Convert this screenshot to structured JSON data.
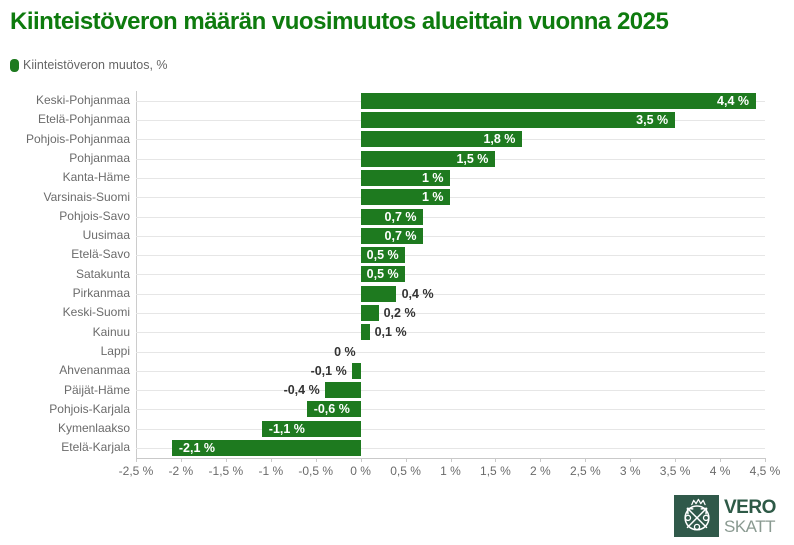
{
  "header": {
    "title": "Kiinteistöveron määrän vuosimuutos alueittain vuonna 2025",
    "title_color": "#0e7b0e"
  },
  "legend": {
    "label": "Kiinteistöveron muutos, %",
    "marker_color": "#1e7a1f"
  },
  "chart_data": {
    "type": "bar",
    "orientation": "horizontal",
    "title": "Kiinteistöveron määrän vuosimuutos alueittain vuonna 2025",
    "series_name": "Kiinteistöveron muutos, %",
    "bar_color": "#1e7a1f",
    "categories": [
      "Keski-Pohjanmaa",
      "Etelä-Pohjanmaa",
      "Pohjois-Pohjanmaa",
      "Pohjanmaa",
      "Kanta-Häme",
      "Varsinais-Suomi",
      "Pohjois-Savo",
      "Uusimaa",
      "Etelä-Savo",
      "Satakunta",
      "Pirkanmaa",
      "Keski-Suomi",
      "Kainuu",
      "Lappi",
      "Ahvenanmaa",
      "Päijät-Häme",
      "Pohjois-Karjala",
      "Kymenlaakso",
      "Etelä-Karjala"
    ],
    "values": [
      4.4,
      3.5,
      1.8,
      1.5,
      1,
      1,
      0.7,
      0.7,
      0.5,
      0.5,
      0.4,
      0.2,
      0.1,
      0,
      -0.1,
      -0.4,
      -0.6,
      -1.1,
      -2.1
    ],
    "value_labels": [
      "4,4 %",
      "3,5 %",
      "1,8 %",
      "1,5 %",
      "1 %",
      "1 %",
      "0,7 %",
      "0,7 %",
      "0,5 %",
      "0,5 %",
      "0,4 %",
      "0,2 %",
      "0,1 %",
      "0 %",
      "-0,1 %",
      "-0,4 %",
      "-0,6 %",
      "-1,1 %",
      "-2,1 %"
    ],
    "xlim": [
      -2.5,
      4.5
    ],
    "x_ticks": [
      -2.5,
      -2,
      -1.5,
      -1,
      -0.5,
      0,
      0.5,
      1,
      1.5,
      2,
      2.5,
      3,
      3.5,
      4,
      4.5
    ],
    "x_tick_labels": [
      "-2,5 %",
      "-2 %",
      "-1,5 %",
      "-1 %",
      "-0,5 %",
      "0 %",
      "0,5 %",
      "1 %",
      "1,5 %",
      "2 %",
      "2,5 %",
      "3 %",
      "3,5 %",
      "4 %",
      "4,5 %"
    ],
    "grid": "horizontal category gridlines only",
    "legend_position": "top-left",
    "data_label_rule": "labels inside bar (white) when |value| >= 0.5, outside (dark) otherwise"
  },
  "logo": {
    "primary": "VERO",
    "secondary": "SKATT",
    "square_color": "#30594a",
    "primary_color": "#2e5a47",
    "secondary_color": "#8a9a91",
    "emblem": "verohallinto-emblem"
  }
}
